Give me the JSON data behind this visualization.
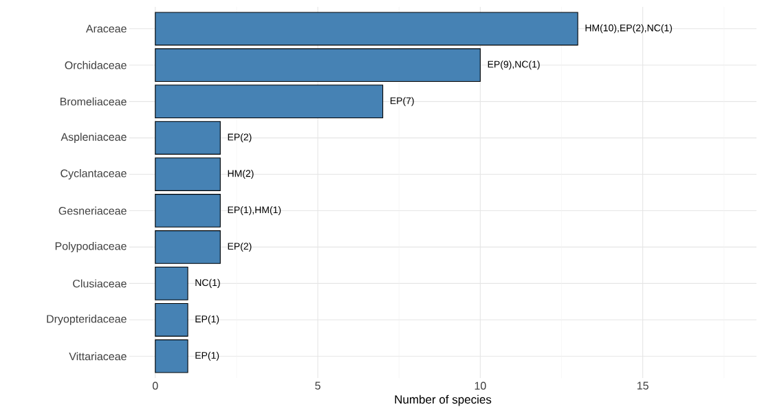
{
  "chart_data": {
    "type": "bar",
    "orientation": "horizontal",
    "categories": [
      "Araceae",
      "Orchidaceae",
      "Bromeliaceae",
      "Aspleniaceae",
      "Cyclantaceae",
      "Gesneriaceae",
      "Polypodiaceae",
      "Clusiaceae",
      "Dryopteridaceae",
      "Vittariaceae"
    ],
    "values": [
      13,
      10,
      7,
      2,
      2,
      2,
      2,
      1,
      1,
      1
    ],
    "value_labels": [
      "HM(10),EP(2),NC(1)",
      "EP(9),NC(1)",
      "EP(7)",
      "EP(2)",
      "HM(2)",
      "EP(1),HM(1)",
      "EP(2)",
      "NC(1)",
      "EP(1)",
      "EP(1)"
    ],
    "color": "#4682b4",
    "xlabel": "Number of species",
    "xlim": [
      -0.8,
      18.5
    ],
    "xticks": [
      0,
      {
        "value": 2.5,
        "label": null
      },
      5,
      {
        "value": 7.5,
        "label": null
      },
      10,
      {
        "value": 12.5,
        "label": null
      },
      15,
      {
        "value": 17.5,
        "label": null
      }
    ],
    "grid": true
  }
}
